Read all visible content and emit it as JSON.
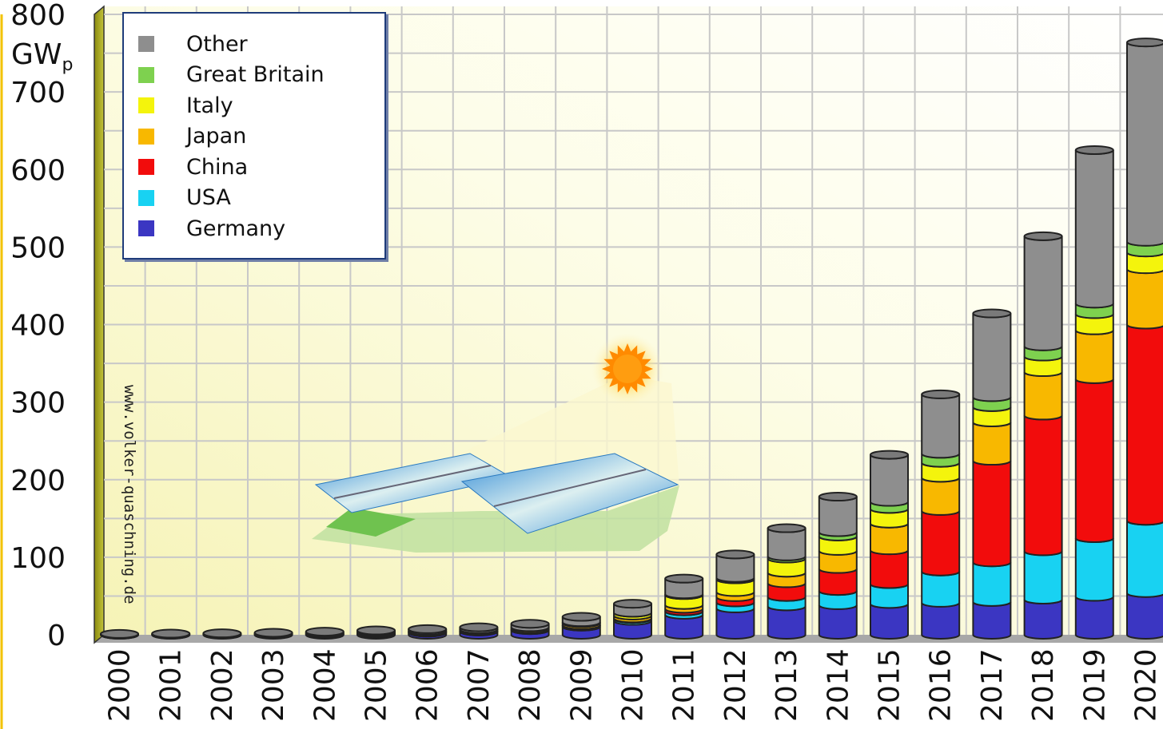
{
  "chart_data": {
    "type": "bar",
    "stacked": true,
    "title": "",
    "xlabel": "",
    "ylabel": "GWp",
    "ylabel_main": "GW",
    "ylabel_sub": "p",
    "ylim": [
      0,
      800
    ],
    "yticks": [
      "0",
      "100",
      "200",
      "300",
      "400",
      "500",
      "600",
      "700",
      "800"
    ],
    "grid": true,
    "legend_position": "top-left",
    "watermark": "www.volker-quaschning.de",
    "categories": [
      "2000",
      "2001",
      "2002",
      "2003",
      "2004",
      "2005",
      "2006",
      "2007",
      "2008",
      "2009",
      "2010",
      "2011",
      "2012",
      "2013",
      "2014",
      "2015",
      "2016",
      "2017",
      "2018",
      "2019",
      "2020"
    ],
    "series": [
      {
        "name": "Germany",
        "color": "#3b36c2",
        "values": [
          0.1,
          0.2,
          0.3,
          0.4,
          1.1,
          2.0,
          2.8,
          4.2,
          6.1,
          10.6,
          18.0,
          25.9,
          34.1,
          36.7,
          38.2,
          39.8,
          41.3,
          42.4,
          45.3,
          49.0,
          53.8
        ]
      },
      {
        "name": "USA",
        "color": "#18d2f2",
        "values": [
          0.1,
          0.1,
          0.1,
          0.2,
          0.3,
          0.4,
          0.5,
          0.8,
          1.2,
          1.6,
          2.5,
          4.4,
          7.7,
          12.1,
          18.3,
          25.6,
          40.3,
          51.0,
          62.4,
          75.6,
          93.2
        ]
      },
      {
        "name": "China",
        "color": "#f20c0c",
        "values": [
          0.0,
          0.0,
          0.0,
          0.0,
          0.1,
          0.1,
          0.1,
          0.1,
          0.1,
          0.3,
          0.8,
          3.3,
          6.8,
          17.7,
          28.4,
          43.6,
          78.1,
          131.0,
          175.0,
          205.0,
          253.0
        ]
      },
      {
        "name": "Japan",
        "color": "#f8b800",
        "values": [
          0.3,
          0.5,
          0.6,
          0.9,
          1.1,
          1.4,
          1.7,
          1.9,
          2.1,
          2.6,
          3.6,
          4.9,
          6.6,
          13.6,
          23.3,
          34.4,
          42.8,
          49.5,
          56.0,
          63.0,
          71.4
        ]
      },
      {
        "name": "Italy",
        "color": "#f4f40c",
        "values": [
          0.0,
          0.0,
          0.0,
          0.0,
          0.0,
          0.0,
          0.1,
          0.1,
          0.4,
          1.2,
          3.5,
          12.8,
          16.4,
          18.2,
          18.6,
          18.9,
          19.3,
          19.7,
          20.1,
          20.9,
          21.6
        ]
      },
      {
        "name": "Great Britain",
        "color": "#7ed14f",
        "values": [
          0.0,
          0.0,
          0.0,
          0.0,
          0.0,
          0.0,
          0.0,
          0.0,
          0.0,
          0.0,
          0.1,
          1.0,
          1.8,
          2.8,
          5.5,
          9.1,
          11.6,
          12.8,
          13.1,
          13.5,
          13.8
        ]
      },
      {
        "name": "Other",
        "color": "#8e8e8e",
        "values": [
          0.6,
          0.7,
          0.9,
          1.1,
          1.4,
          1.7,
          2.1,
          2.6,
          4.3,
          6.9,
          11.5,
          20.1,
          30.2,
          36.3,
          45.8,
          60.7,
          76.6,
          108.0,
          142.0,
          198.0,
          257.0
        ]
      }
    ]
  }
}
